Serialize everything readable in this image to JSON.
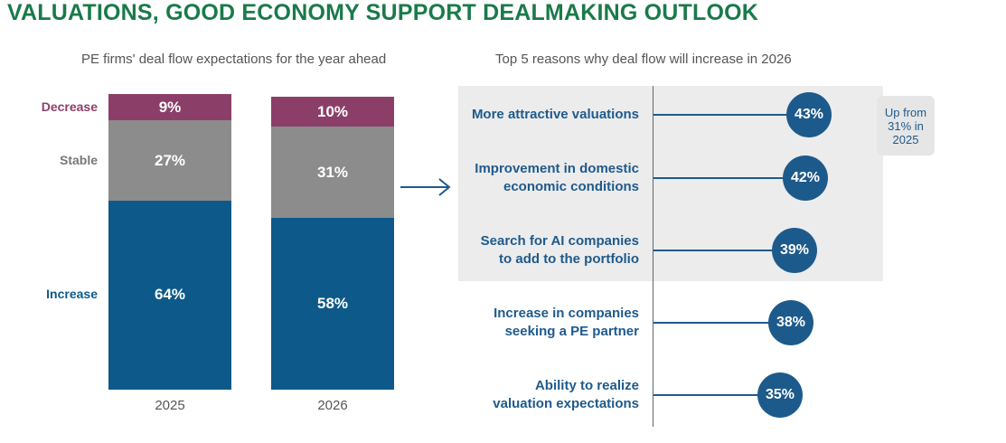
{
  "title": "VALUATIONS, GOOD ECONOMY SUPPORT DEALMAKING OUTLOOK",
  "colors": {
    "increase": "#0d5a8a",
    "stable": "#8c8c8c",
    "decrease": "#8b3f68",
    "headline": "#1a7a4a",
    "bubble": "#1d5a8c",
    "highlight": "#ececec"
  },
  "chart_data": [
    {
      "type": "bar",
      "stacked": true,
      "title": "PE firms' deal flow expectations for the year ahead",
      "categories": [
        "2025",
        "2026"
      ],
      "series": [
        {
          "name": "Increase",
          "values": [
            64,
            58
          ],
          "labels": [
            "64%",
            "58%"
          ]
        },
        {
          "name": "Stable",
          "values": [
            27,
            31
          ],
          "labels": [
            "27%",
            "31%"
          ]
        },
        {
          "name": "Decrease",
          "values": [
            9,
            10
          ],
          "labels": [
            "9%",
            "10%"
          ]
        }
      ],
      "unit": "%"
    },
    {
      "type": "bar",
      "orientation": "horizontal",
      "style": "lollipop",
      "title": "Top 5 reasons why deal flow will increase in 2026",
      "categories": [
        [
          "More attractive valuations"
        ],
        [
          "Improvement in domestic",
          "economic conditions"
        ],
        [
          "Search for AI companies",
          "to add to the portfolio"
        ],
        [
          "Increase in companies",
          "seeking a PE partner"
        ],
        [
          "Ability to realize",
          "valuation expectations"
        ]
      ],
      "values": [
        43,
        42,
        39,
        38,
        35
      ],
      "labels": [
        "43%",
        "42%",
        "39%",
        "38%",
        "35%"
      ],
      "highlighted": [
        true,
        true,
        true,
        false,
        false
      ],
      "annotation": [
        "Up from",
        "31% in",
        "2025"
      ]
    }
  ]
}
